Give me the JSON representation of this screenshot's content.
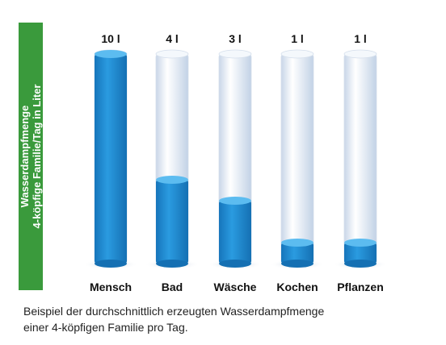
{
  "chart_data": {
    "type": "bar",
    "ylabel": "Wasserdampfmenge\n4-köpfige Familie/Tag in Liter",
    "categories": [
      "Mensch",
      "Bad",
      "Wäsche",
      "Kochen",
      "Pflanzen"
    ],
    "values": [
      10,
      4,
      3,
      1,
      1
    ],
    "value_labels": [
      "10 l",
      "4 l",
      "3 l",
      "1 l",
      "1 l"
    ],
    "ylim": [
      0,
      10
    ],
    "grid": false,
    "legend": "none"
  },
  "caption": {
    "line1": "Beispiel der durchschnittlich erzeugten Wasserdampfmenge",
    "line2": "einer 4-köpfigen Familie pro Tag."
  },
  "colors": {
    "label_box": "#3a9a3c",
    "fill_dark": "#1c8bd1",
    "fill_light": "#4fb3ea",
    "tube": "#e6eef8"
  }
}
